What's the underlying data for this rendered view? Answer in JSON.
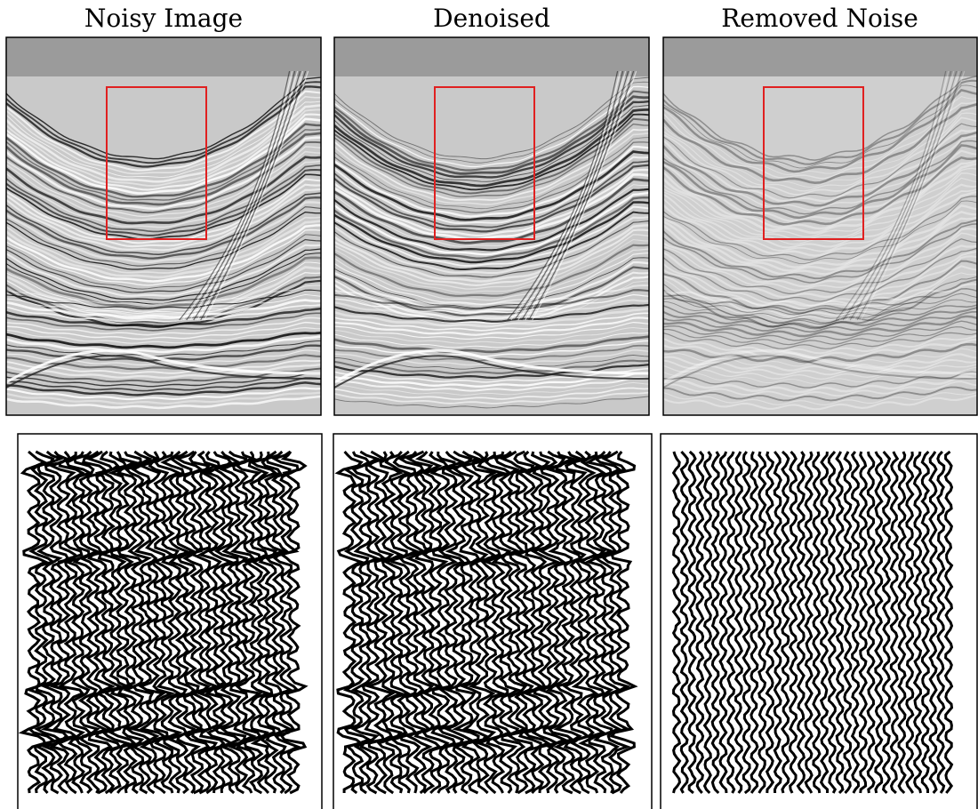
{
  "panels": [
    {
      "title": "Noisy Image"
    },
    {
      "title": "Denoised"
    },
    {
      "title": "Removed Noise"
    }
  ]
}
